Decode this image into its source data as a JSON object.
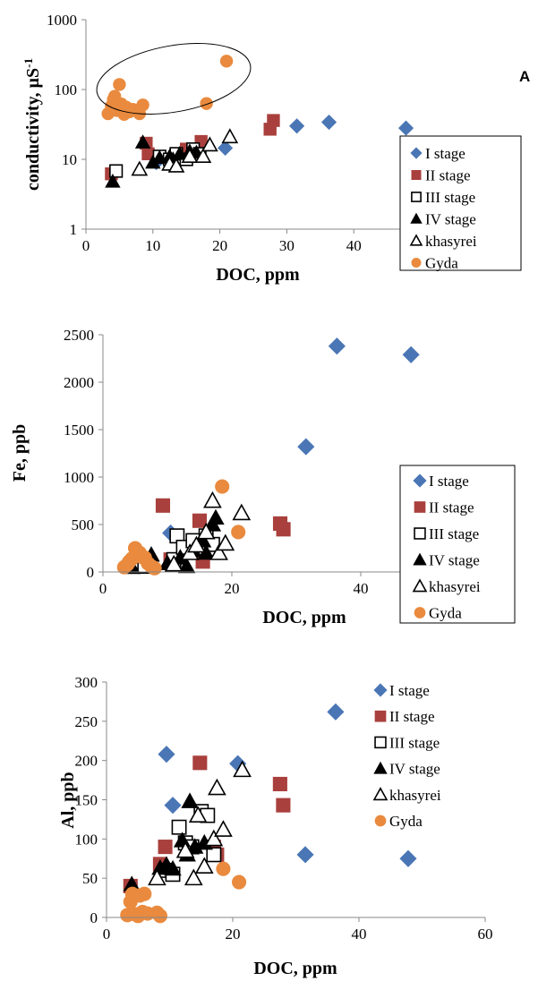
{
  "panel_label": "A",
  "series_styles": [
    {
      "name": "I stage",
      "marker": "diamond",
      "color": "#4a76b5",
      "filled": true
    },
    {
      "name": "II stage",
      "marker": "square",
      "color": "#a9403d",
      "filled": true
    },
    {
      "name": "III stage",
      "marker": "square",
      "color": "#000000",
      "filled": false
    },
    {
      "name": "IV stage",
      "marker": "triangle",
      "color": "#000000",
      "filled": true
    },
    {
      "name": "khasyrei",
      "marker": "triangle",
      "color": "#000000",
      "filled": false
    },
    {
      "name": "Gyda",
      "marker": "circle",
      "color": "#e98a3e",
      "filled": true
    }
  ],
  "chart_data": [
    {
      "type": "scatter",
      "xlabel": "DOC, ppm",
      "ylabel": "conductivity, µS",
      "ylabel_sup": "-1",
      "xlim": [
        0,
        50
      ],
      "ylim": [
        1,
        1000
      ],
      "log_y": true,
      "xticks": [
        "0",
        "10",
        "20",
        "30",
        "40"
      ],
      "yticks": [
        "1",
        "10",
        "100",
        "1000"
      ],
      "legend_position": "right",
      "annotations": [
        {
          "type": "ellipse",
          "label": "",
          "around": "Gyda"
        }
      ],
      "series": [
        {
          "name": "I stage",
          "points": [
            [
              10.5,
              9
            ],
            [
              20.8,
              14.5
            ],
            [
              31.5,
              30
            ],
            [
              36.3,
              34
            ],
            [
              47.8,
              28
            ]
          ]
        },
        {
          "name": "II stage",
          "points": [
            [
              3.8,
              6.2
            ],
            [
              9.3,
              12
            ],
            [
              9.0,
              17
            ],
            [
              15.0,
              14
            ],
            [
              17.2,
              18
            ],
            [
              27.5,
              27
            ],
            [
              28.0,
              36
            ]
          ]
        },
        {
          "name": "III stage",
          "points": [
            [
              4.5,
              6.8
            ],
            [
              11.0,
              11
            ],
            [
              12.5,
              10
            ],
            [
              13.5,
              12
            ],
            [
              15.0,
              10
            ],
            [
              16.0,
              14
            ],
            [
              17.0,
              12
            ]
          ]
        },
        {
          "name": "IV stage",
          "points": [
            [
              4.0,
              4.8
            ],
            [
              8.5,
              17.5
            ],
            [
              10.0,
              9
            ],
            [
              11.0,
              10.5
            ],
            [
              12.5,
              11
            ],
            [
              13.0,
              10
            ],
            [
              14.0,
              12
            ],
            [
              15.5,
              13
            ],
            [
              16.5,
              12.5
            ]
          ]
        },
        {
          "name": "khasyrei",
          "points": [
            [
              8.0,
              7.2
            ],
            [
              12.5,
              8.5
            ],
            [
              13.5,
              8
            ],
            [
              15.5,
              11
            ],
            [
              17.5,
              11
            ],
            [
              18.5,
              16
            ],
            [
              21.5,
              21
            ]
          ]
        },
        {
          "name": "Gyda",
          "points": [
            [
              3.3,
              45
            ],
            [
              3.8,
              58
            ],
            [
              4.1,
              72
            ],
            [
              4.3,
              80
            ],
            [
              4.6,
              50
            ],
            [
              5.0,
              118
            ],
            [
              5.3,
              62
            ],
            [
              5.7,
              44
            ],
            [
              6.0,
              56
            ],
            [
              6.5,
              48
            ],
            [
              7.0,
              52
            ],
            [
              8.0,
              45
            ],
            [
              8.5,
              60
            ],
            [
              18.0,
              63
            ],
            [
              21.0,
              255
            ]
          ]
        }
      ]
    },
    {
      "type": "scatter",
      "xlabel": "DOC, ppm",
      "ylabel": "Fe, ppb",
      "xlim": [
        0,
        50
      ],
      "ylim": [
        0,
        2500
      ],
      "xticks": [
        "0",
        "20",
        "40"
      ],
      "yticks": [
        "0",
        "500",
        "1000",
        "1500",
        "2000",
        "2500"
      ],
      "legend_position": "right",
      "series": [
        {
          "name": "I stage",
          "points": [
            [
              10.5,
              410
            ],
            [
              31.5,
              1320
            ],
            [
              36.3,
              2380
            ],
            [
              47.8,
              2290
            ]
          ]
        },
        {
          "name": "II stage",
          "points": [
            [
              9.3,
              700
            ],
            [
              10.5,
              130
            ],
            [
              15.0,
              540
            ],
            [
              15.5,
              110
            ],
            [
              27.5,
              510
            ],
            [
              28.0,
              450
            ]
          ]
        },
        {
          "name": "III stage",
          "points": [
            [
              6.5,
              60
            ],
            [
              11.0,
              130
            ],
            [
              11.5,
              380
            ],
            [
              12.5,
              260
            ],
            [
              14.0,
              330
            ],
            [
              16.0,
              380
            ],
            [
              17.0,
              290
            ]
          ]
        },
        {
          "name": "IV stage",
          "points": [
            [
              4.5,
              50
            ],
            [
              7.5,
              180
            ],
            [
              10.0,
              90
            ],
            [
              12.0,
              150
            ],
            [
              13.0,
              60
            ],
            [
              14.0,
              230
            ],
            [
              15.5,
              330
            ],
            [
              16.0,
              200
            ],
            [
              17.0,
              500
            ],
            [
              17.5,
              570
            ]
          ]
        },
        {
          "name": "khasyrei",
          "points": [
            [
              11.0,
              80
            ],
            [
              13.5,
              200
            ],
            [
              14.5,
              280
            ],
            [
              16.0,
              420
            ],
            [
              17.0,
              750
            ],
            [
              18.0,
              200
            ],
            [
              19.0,
              300
            ],
            [
              21.5,
              620
            ]
          ]
        },
        {
          "name": "Gyda",
          "points": [
            [
              3.3,
              50
            ],
            [
              3.8,
              80
            ],
            [
              4.1,
              110
            ],
            [
              4.5,
              140
            ],
            [
              5.0,
              250
            ],
            [
              5.3,
              180
            ],
            [
              5.7,
              200
            ],
            [
              6.0,
              160
            ],
            [
              6.5,
              150
            ],
            [
              7.0,
              90
            ],
            [
              7.5,
              60
            ],
            [
              8.0,
              40
            ],
            [
              18.5,
              900
            ],
            [
              21.0,
              420
            ]
          ]
        }
      ]
    },
    {
      "type": "scatter",
      "xlabel": "DOC, ppm",
      "ylabel": "Al, ppb",
      "xlim": [
        0,
        60
      ],
      "ylim": [
        0,
        300
      ],
      "xticks": [
        "0",
        "20",
        "40",
        "60"
      ],
      "yticks": [
        "0",
        "50",
        "100",
        "150",
        "200",
        "250",
        "300"
      ],
      "legend_position": "top-right",
      "series": [
        {
          "name": "I stage",
          "points": [
            [
              9.5,
              208
            ],
            [
              10.5,
              143
            ],
            [
              20.8,
              196
            ],
            [
              31.5,
              80
            ],
            [
              36.3,
              262
            ],
            [
              47.8,
              75
            ]
          ]
        },
        {
          "name": "II stage",
          "points": [
            [
              3.8,
              40
            ],
            [
              8.5,
              68
            ],
            [
              9.3,
              90
            ],
            [
              14.8,
              197
            ],
            [
              17.0,
              90
            ],
            [
              17.5,
              80
            ],
            [
              27.5,
              170
            ],
            [
              28.0,
              143
            ]
          ]
        },
        {
          "name": "III stage",
          "points": [
            [
              9.5,
              60
            ],
            [
              10.5,
              55
            ],
            [
              11.5,
              115
            ],
            [
              12.5,
              95
            ],
            [
              13.5,
              90
            ],
            [
              15.0,
              135
            ],
            [
              16.0,
              130
            ],
            [
              17.0,
              80
            ]
          ]
        },
        {
          "name": "IV stage",
          "points": [
            [
              4.0,
              42
            ],
            [
              8.5,
              63
            ],
            [
              9.5,
              67
            ],
            [
              10.5,
              62
            ],
            [
              12.0,
              98
            ],
            [
              12.8,
              80
            ],
            [
              13.2,
              148
            ],
            [
              14.0,
              90
            ],
            [
              15.5,
              95
            ]
          ]
        },
        {
          "name": "khasyrei",
          "points": [
            [
              8.0,
              50
            ],
            [
              12.5,
              85
            ],
            [
              13.8,
              50
            ],
            [
              14.5,
              130
            ],
            [
              15.5,
              65
            ],
            [
              17.0,
              100
            ],
            [
              17.5,
              165
            ],
            [
              18.5,
              112
            ],
            [
              21.5,
              188
            ]
          ]
        },
        {
          "name": "Gyda",
          "points": [
            [
              3.3,
              3
            ],
            [
              3.8,
              20
            ],
            [
              4.1,
              30
            ],
            [
              4.5,
              4
            ],
            [
              5.0,
              2
            ],
            [
              5.3,
              28
            ],
            [
              5.7,
              7
            ],
            [
              6.0,
              30
            ],
            [
              6.5,
              5
            ],
            [
              8.0,
              6
            ],
            [
              8.5,
              2
            ],
            [
              18.5,
              62
            ],
            [
              21.0,
              45
            ]
          ]
        }
      ]
    }
  ]
}
